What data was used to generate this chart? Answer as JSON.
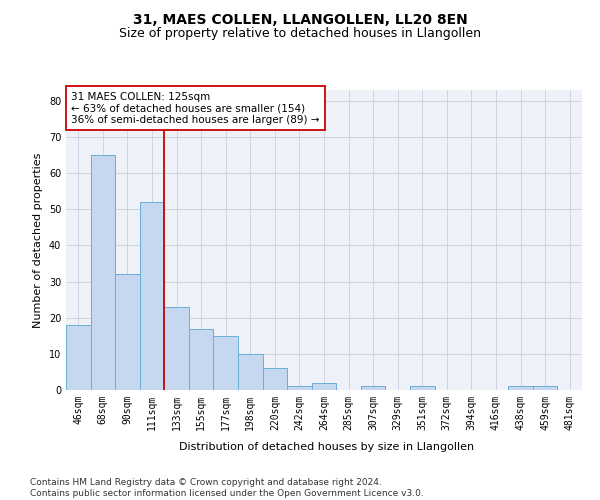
{
  "title": "31, MAES COLLEN, LLANGOLLEN, LL20 8EN",
  "subtitle": "Size of property relative to detached houses in Llangollen",
  "xlabel": "Distribution of detached houses by size in Llangollen",
  "ylabel": "Number of detached properties",
  "categories": [
    "46sqm",
    "68sqm",
    "90sqm",
    "111sqm",
    "133sqm",
    "155sqm",
    "177sqm",
    "198sqm",
    "220sqm",
    "242sqm",
    "264sqm",
    "285sqm",
    "307sqm",
    "329sqm",
    "351sqm",
    "372sqm",
    "394sqm",
    "416sqm",
    "438sqm",
    "459sqm",
    "481sqm"
  ],
  "values": [
    18,
    65,
    32,
    52,
    23,
    17,
    15,
    10,
    6,
    1,
    2,
    0,
    1,
    0,
    1,
    0,
    0,
    0,
    1,
    1,
    0
  ],
  "bar_color": "#c5d8f0",
  "bar_edge_color": "#6aaed6",
  "grid_color": "#c8d0dc",
  "bg_color": "#eef2f8",
  "vline_x_index": 3.5,
  "vline_color": "#cc0000",
  "annotation_text": "31 MAES COLLEN: 125sqm\n← 63% of detached houses are smaller (154)\n36% of semi-detached houses are larger (89) →",
  "annotation_box_color": "white",
  "annotation_box_edge": "#cc0000",
  "ylim": [
    0,
    83
  ],
  "yticks": [
    0,
    10,
    20,
    30,
    40,
    50,
    60,
    70,
    80
  ],
  "footer_text": "Contains HM Land Registry data © Crown copyright and database right 2024.\nContains public sector information licensed under the Open Government Licence v3.0.",
  "title_fontsize": 10,
  "subtitle_fontsize": 9,
  "xlabel_fontsize": 8,
  "ylabel_fontsize": 8,
  "tick_fontsize": 7,
  "annotation_fontsize": 7.5,
  "footer_fontsize": 6.5
}
